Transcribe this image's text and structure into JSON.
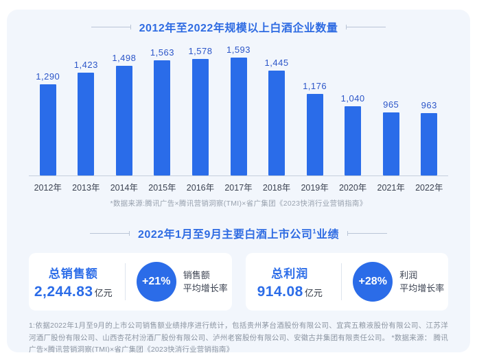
{
  "section1": {
    "title": "2012年至2022年规模以上白酒企业数量",
    "source_note": "*数据来源:腾讯广告×腾讯营销洞察(TMI)×省广集团《2023快消行业营销指南》"
  },
  "chart_data": {
    "type": "bar",
    "title": "2012年至2022年规模以上白酒企业数量",
    "categories": [
      "2012年",
      "2013年",
      "2014年",
      "2015年",
      "2016年",
      "2017年",
      "2018年",
      "2019年",
      "2020年",
      "2021年",
      "2022年"
    ],
    "values": [
      1290,
      1423,
      1498,
      1563,
      1578,
      1593,
      1445,
      1176,
      1040,
      965,
      963
    ],
    "labels": [
      "1,290",
      "1,423",
      "1,498",
      "1,563",
      "1,578",
      "1,593",
      "1,445",
      "1,176",
      "1,040",
      "965",
      "963"
    ],
    "xlabel": "",
    "ylabel": "",
    "ylim": [
      250,
      1600
    ],
    "grid": false,
    "legend": false,
    "bar_color": "#2a6ce9"
  },
  "section2": {
    "title_main": "2022年1月至9月主要白酒上市公司",
    "title_sup": "1",
    "title_tail": "业绩"
  },
  "performance": {
    "cards": [
      {
        "title": "总销售额",
        "value": "2,244.83",
        "unit": "亿元",
        "growth": "+21%",
        "growth_label_line1": "销售额",
        "growth_label_line2": "平均增长率"
      },
      {
        "title": "总利润",
        "value": "914.08",
        "unit": "亿元",
        "growth": "+28%",
        "growth_label_line1": "利润",
        "growth_label_line2": "平均增长率"
      }
    ]
  },
  "footnote": "1:依据2022年1月至9月的上市公司销售额业绩排序进行统计，包括贵州茅台酒股份有限公司、宜宾五粮液股份有限公司、江苏洋河酒厂股份有限公司、山西杏花村汾酒厂股份有限公司、泸州老窖股份有限公司、安徽古井集团有限责任公司。 *数据来源： 腾讯广告×腾讯营销洞察(TMI)×省广集团《2023快消行业营销指南》",
  "colors": {
    "accent_blue": "#2b6ce8",
    "bar_blue": "#2a6ce9",
    "value_label_blue": "#2b55c8",
    "panel_bg": "#f2f6fc",
    "card_bg": "#ffffff",
    "dark_text": "#3a4150",
    "muted_text": "#8b94a1",
    "axis_line": "#c5cfdc"
  }
}
